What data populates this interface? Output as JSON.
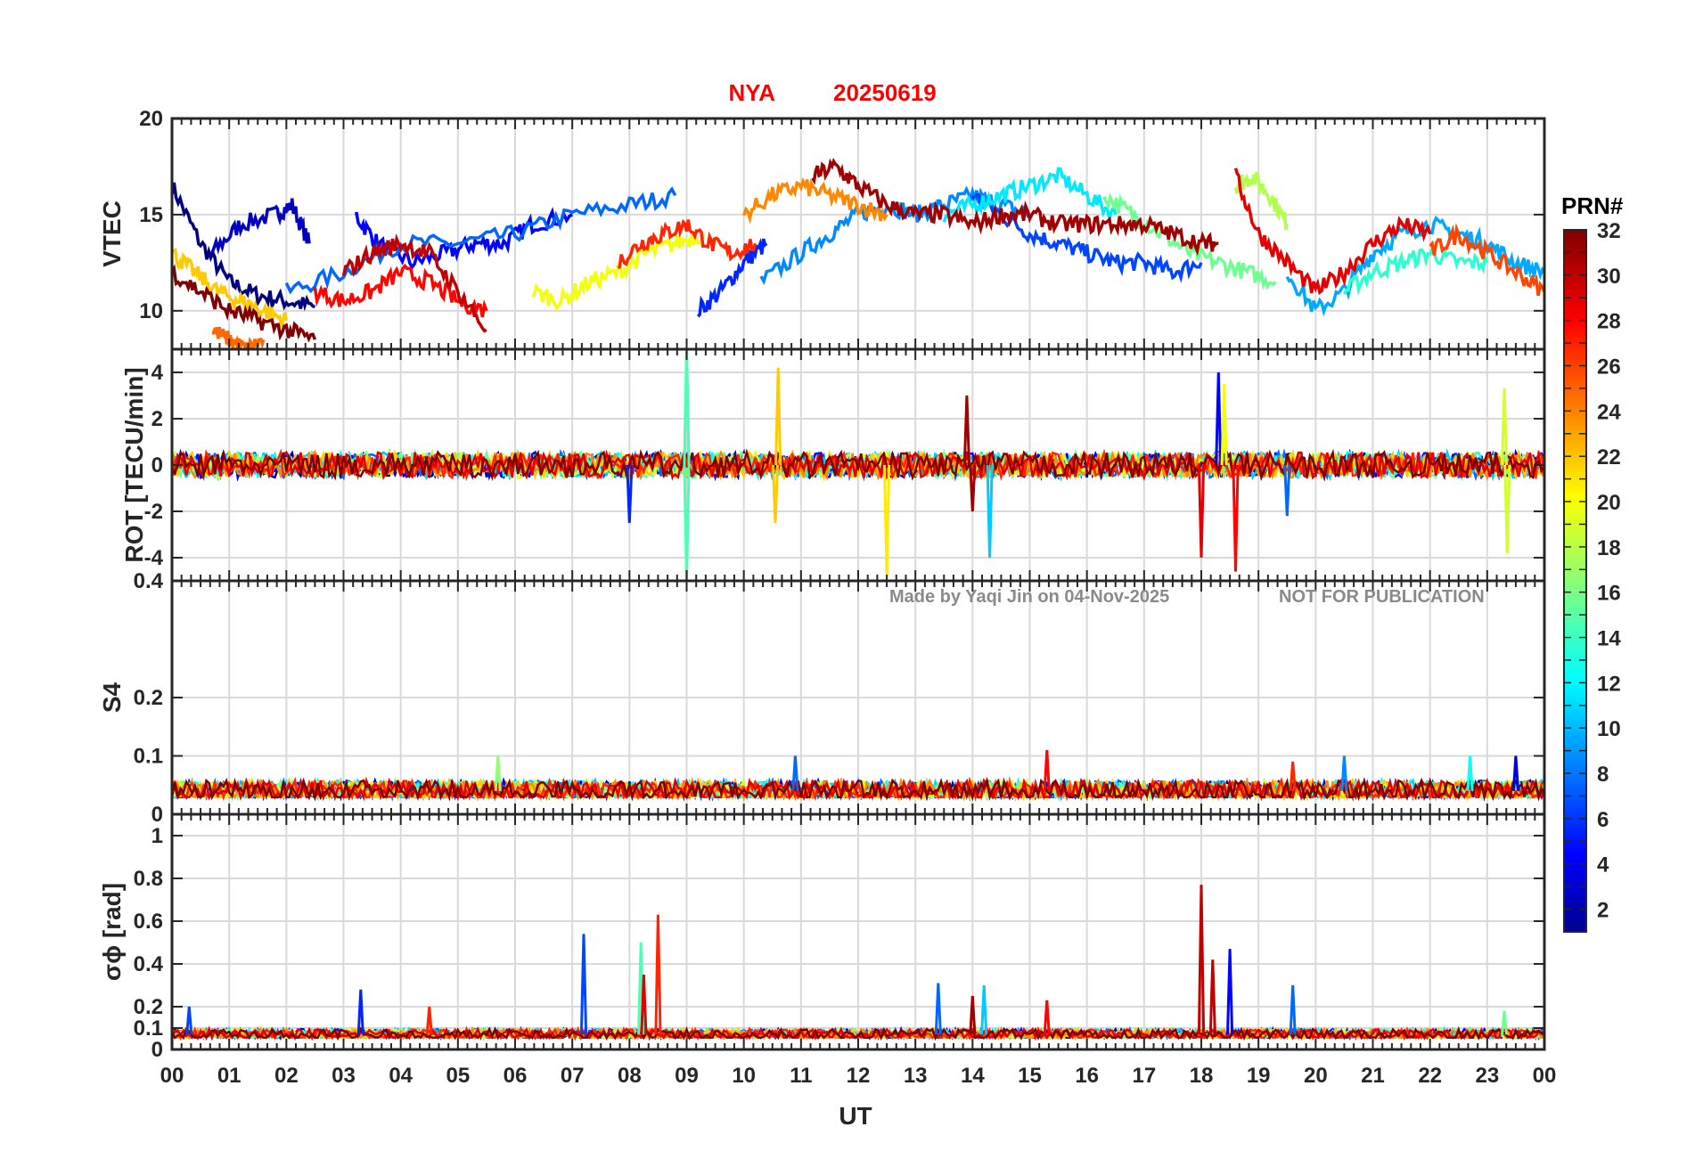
{
  "title": {
    "station": "NYA",
    "date": "20250619"
  },
  "watermark": {
    "author": "Made by Yaqi Jin on 04-Nov-2025",
    "notice": "NOT FOR PUBLICATION"
  },
  "colorbar": {
    "title": "PRN#",
    "ticks": [
      "2",
      "4",
      "6",
      "8",
      "10",
      "12",
      "14",
      "16",
      "18",
      "20",
      "22",
      "24",
      "26",
      "28",
      "30",
      "32"
    ],
    "colormap": "jet",
    "range": [
      1,
      32
    ]
  },
  "xaxis": {
    "label": "UT",
    "ticks": [
      "00",
      "01",
      "02",
      "03",
      "04",
      "05",
      "06",
      "07",
      "08",
      "09",
      "10",
      "11",
      "12",
      "13",
      "14",
      "15",
      "16",
      "17",
      "18",
      "19",
      "20",
      "21",
      "22",
      "23",
      "00"
    ]
  },
  "colors": {
    "title": "#ff0000",
    "axes": "#262626",
    "grid": "#d9d9d9"
  },
  "chart_data": [
    {
      "type": "line",
      "panel": "vtec",
      "ylabel": "VTEC",
      "ylim": [
        8,
        20
      ],
      "yticks": [
        "10",
        "15",
        "20"
      ],
      "series": [
        {
          "prn": 1,
          "x": [
            0.0,
            0.5,
            1.0,
            1.5,
            2.0,
            2.5
          ],
          "y": [
            16.5,
            13.5,
            11.5,
            10.8,
            10.5,
            10.2
          ]
        },
        {
          "prn": 3,
          "x": [
            0.7,
            1.2,
            1.8,
            2.1,
            2.4
          ],
          "y": [
            13,
            14.5,
            15,
            15.5,
            13.5
          ]
        },
        {
          "prn": 5,
          "x": [
            3.2,
            3.6,
            4.2,
            4.8,
            5.3,
            5.8,
            6.3,
            7.0
          ],
          "y": [
            15,
            13.5,
            12.5,
            13,
            13.5,
            13.5,
            14.5,
            15
          ]
        },
        {
          "prn": 8,
          "x": [
            2.0,
            3.0,
            4.0,
            5.0,
            6.0,
            7.0,
            8.0,
            8.8
          ],
          "y": [
            11,
            12,
            13.5,
            13.5,
            14,
            15,
            15.5,
            16
          ]
        },
        {
          "prn": 6,
          "x": [
            9.2,
            9.6,
            10.0,
            10.4
          ],
          "y": [
            10,
            11,
            12.5,
            13.5
          ]
        },
        {
          "prn": 9,
          "x": [
            10.3,
            11.0,
            11.5,
            12.0,
            12.5,
            13.0,
            13.5,
            14.0,
            14.5,
            15.0
          ],
          "y": [
            11.5,
            13,
            14,
            15,
            15.5,
            15,
            15.5,
            16,
            15.5,
            15
          ]
        },
        {
          "prn": 7,
          "x": [
            14.0,
            14.5,
            15.0,
            15.5,
            16.0,
            16.5,
            17.0,
            17.5,
            18.0
          ],
          "y": [
            16,
            15,
            14,
            13.5,
            13,
            12.5,
            12.5,
            12,
            12.5
          ]
        },
        {
          "prn": 12,
          "x": [
            13.5,
            14.0,
            14.5,
            15.0,
            15.5,
            16.0,
            16.5
          ],
          "y": [
            15,
            15.5,
            16,
            16.5,
            17,
            16,
            15
          ]
        },
        {
          "prn": 16,
          "x": [
            16.3,
            16.8,
            17.3,
            17.8,
            18.3,
            18.8,
            19.3
          ],
          "y": [
            16,
            15,
            14,
            13,
            12.5,
            12,
            11.5
          ]
        },
        {
          "prn": 18,
          "x": [
            18.6,
            18.9,
            19.2,
            19.5
          ],
          "y": [
            16.5,
            17,
            16,
            14.5
          ]
        },
        {
          "prn": 10,
          "x": [
            19.5,
            20.0,
            20.5,
            21.0,
            21.5,
            22.0,
            22.5,
            23.0,
            23.5,
            24.0
          ],
          "y": [
            12,
            10,
            11,
            13,
            14,
            14.5,
            14,
            13.5,
            12.5,
            12
          ]
        },
        {
          "prn": 14,
          "x": [
            20.5,
            21.0,
            21.5,
            22.0,
            22.5,
            23.0
          ],
          "y": [
            11,
            12,
            12.5,
            13,
            12.5,
            12.5
          ]
        },
        {
          "prn": 20,
          "x": [
            6.3,
            6.8,
            7.3,
            7.8,
            8.3,
            8.8,
            9.3
          ],
          "y": [
            11,
            10.5,
            11.5,
            12,
            13,
            13.5,
            14
          ]
        },
        {
          "prn": 22,
          "x": [
            0.0,
            0.4,
            0.8,
            1.2,
            1.6,
            2.0
          ],
          "y": [
            13,
            12,
            11,
            10.5,
            10,
            9.5
          ]
        },
        {
          "prn": 24,
          "x": [
            10.0,
            10.5,
            11.0,
            11.5,
            12.0,
            12.5
          ],
          "y": [
            15,
            16,
            16.5,
            16,
            15.5,
            15
          ]
        },
        {
          "prn": 25,
          "x": [
            0.7,
            1.0,
            1.3,
            1.6
          ],
          "y": [
            9,
            8.5,
            8,
            8.5
          ]
        },
        {
          "prn": 26,
          "x": [
            22.0,
            22.5,
            23.0,
            23.5,
            24.0
          ],
          "y": [
            13,
            14,
            13,
            12,
            11
          ]
        },
        {
          "prn": 28,
          "x": [
            2.5,
            3.0,
            3.5,
            4.0,
            4.5,
            5.0,
            5.5
          ],
          "y": [
            11,
            10.5,
            11,
            12,
            11.5,
            10.5,
            10
          ]
        },
        {
          "prn": 27,
          "x": [
            7.8,
            8.2,
            8.6,
            9.0,
            9.4,
            9.8,
            10.2
          ],
          "y": [
            12.5,
            13.5,
            14,
            14.5,
            13.5,
            13,
            13.5
          ]
        },
        {
          "prn": 29,
          "x": [
            18.6,
            19.0,
            19.5,
            20.0,
            20.5,
            21.0,
            21.5,
            22.0
          ],
          "y": [
            17,
            14,
            12.5,
            11,
            12,
            13.5,
            14.5,
            14
          ]
        },
        {
          "prn": 31,
          "x": [
            11.2,
            11.6,
            12.0,
            12.5,
            13.0,
            13.5,
            14.0,
            14.5,
            15.0,
            15.5,
            16.0,
            16.5,
            17.0,
            17.5,
            18.0,
            18.3
          ],
          "y": [
            17,
            17.5,
            16.5,
            15.5,
            15,
            15,
            14.5,
            15,
            15,
            14.5,
            14.5,
            14.5,
            14.5,
            14,
            13.5,
            13.5
          ]
        },
        {
          "prn": 32,
          "x": [
            0.0,
            0.5,
            1.0,
            1.5,
            2.0,
            2.5
          ],
          "y": [
            12,
            11,
            10,
            9.5,
            9,
            8.5
          ]
        },
        {
          "prn": 30,
          "x": [
            3.0,
            3.5,
            4.0,
            4.5,
            5.0,
            5.5
          ],
          "y": [
            12,
            13,
            13.5,
            13,
            11,
            9
          ]
        }
      ]
    },
    {
      "type": "line",
      "panel": "rot",
      "ylabel": "ROT [TECU/min]",
      "ylim": [
        -5,
        5
      ],
      "yticks": [
        "-4",
        "-2",
        "0",
        "2",
        "4"
      ],
      "series_note": "all PRNs overlaid, noise near 0",
      "spikes": [
        {
          "prn": 15,
          "x": 9.0,
          "y": 5.2
        },
        {
          "prn": 15,
          "x": 9.0,
          "y": -5.0
        },
        {
          "prn": 22,
          "x": 10.6,
          "y": 4.2
        },
        {
          "prn": 22,
          "x": 10.55,
          "y": -2.5
        },
        {
          "prn": 21,
          "x": 12.5,
          "y": -4.8
        },
        {
          "prn": 31,
          "x": 13.9,
          "y": 3.0
        },
        {
          "prn": 31,
          "x": 14.0,
          "y": -2.0
        },
        {
          "prn": 11,
          "x": 14.3,
          "y": -4.0
        },
        {
          "prn": 5,
          "x": 18.3,
          "y": 4.0
        },
        {
          "prn": 20,
          "x": 18.4,
          "y": 3.5
        },
        {
          "prn": 29,
          "x": 18.0,
          "y": -4.0
        },
        {
          "prn": 28,
          "x": 18.6,
          "y": -4.6
        },
        {
          "prn": 19,
          "x": 23.3,
          "y": 3.3
        },
        {
          "prn": 19,
          "x": 23.35,
          "y": -3.8
        },
        {
          "prn": 8,
          "x": 19.5,
          "y": -2.2
        },
        {
          "prn": 6,
          "x": 8.0,
          "y": -2.5
        }
      ]
    },
    {
      "type": "line",
      "panel": "s4",
      "ylabel": "S4",
      "ylim": [
        0,
        0.4
      ],
      "yticks": [
        "0",
        "0.1",
        "0.2",
        "0.4"
      ],
      "baseline": 0.04,
      "peaks": [
        {
          "prn": 17,
          "x": 5.7,
          "y": 0.1
        },
        {
          "prn": 8,
          "x": 10.9,
          "y": 0.1
        },
        {
          "prn": 28,
          "x": 15.3,
          "y": 0.11
        },
        {
          "prn": 27,
          "x": 19.6,
          "y": 0.09
        },
        {
          "prn": 9,
          "x": 20.5,
          "y": 0.1
        },
        {
          "prn": 13,
          "x": 22.7,
          "y": 0.1
        },
        {
          "prn": 4,
          "x": 23.5,
          "y": 0.1
        }
      ]
    },
    {
      "type": "line",
      "panel": "sigma_phi",
      "ylabel": "σϕ [rad]",
      "ylim": [
        0,
        1.1
      ],
      "yticks": [
        "0",
        "0.1",
        "0.2",
        "0.4",
        "0.6",
        "0.8",
        "1"
      ],
      "baseline": 0.07,
      "peaks": [
        {
          "prn": 7,
          "x": 0.3,
          "y": 0.2
        },
        {
          "prn": 6,
          "x": 3.3,
          "y": 0.28
        },
        {
          "prn": 27,
          "x": 4.5,
          "y": 0.2
        },
        {
          "prn": 7,
          "x": 7.2,
          "y": 0.54
        },
        {
          "prn": 15,
          "x": 8.2,
          "y": 0.5
        },
        {
          "prn": 29,
          "x": 8.25,
          "y": 0.35
        },
        {
          "prn": 27,
          "x": 8.5,
          "y": 0.63
        },
        {
          "prn": 8,
          "x": 13.4,
          "y": 0.31
        },
        {
          "prn": 31,
          "x": 14.0,
          "y": 0.25
        },
        {
          "prn": 11,
          "x": 14.2,
          "y": 0.3
        },
        {
          "prn": 28,
          "x": 15.3,
          "y": 0.23
        },
        {
          "prn": 30,
          "x": 18.0,
          "y": 0.77
        },
        {
          "prn": 30,
          "x": 18.2,
          "y": 0.42
        },
        {
          "prn": 5,
          "x": 18.5,
          "y": 0.47
        },
        {
          "prn": 8,
          "x": 19.6,
          "y": 0.3
        },
        {
          "prn": 16,
          "x": 23.3,
          "y": 0.18
        }
      ]
    }
  ]
}
